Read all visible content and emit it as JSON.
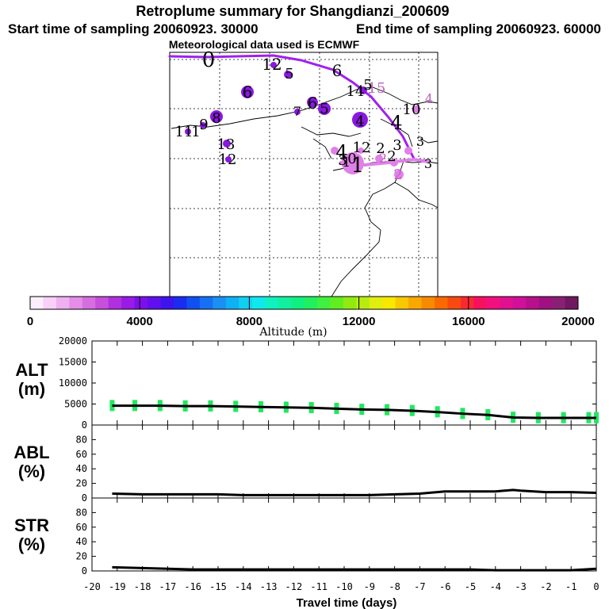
{
  "header": {
    "title": "Retroplume summary for Shangdianzi_200609",
    "start_label": "Start time of sampling 20060923. 30000",
    "end_label": "End time of sampling 20060923. 60000",
    "met_label": "Meteorological data used is ECMWF"
  },
  "colorbar": {
    "label": "Altitude (m)",
    "ticks": [
      "0",
      "4000",
      "8000",
      "12000",
      "16000",
      "20000"
    ],
    "colors": [
      "#fdeefd",
      "#f8d0f8",
      "#efb0f0",
      "#e48ee6",
      "#d66ee0",
      "#c64fdc",
      "#b030e0",
      "#9a1ae6",
      "#7d10e8",
      "#6010ec",
      "#3d14ee",
      "#1a2cf0",
      "#1050f0",
      "#1670f2",
      "#1a90f4",
      "#10b0f4",
      "#10d0f2",
      "#10e8ee",
      "#10f0c0",
      "#10f0a0",
      "#10f080",
      "#20f060",
      "#40f040",
      "#60ee20",
      "#90ec10",
      "#b8ec10",
      "#e0ee10",
      "#f8e800",
      "#f8c800",
      "#f8a800",
      "#f88a00",
      "#f86a00",
      "#f84a10",
      "#f82a30",
      "#f81060",
      "#f01080",
      "#e01090",
      "#d0109a",
      "#b8108c",
      "#a01080",
      "#882074",
      "#701860"
    ]
  },
  "map": {
    "labels": [
      "0",
      "12",
      "5",
      "6",
      "6",
      "14",
      "15",
      "5",
      "4",
      "6",
      "7",
      "5",
      "4",
      "10",
      "4",
      "1",
      "11",
      "9",
      "8",
      "13",
      "12",
      "4",
      "3",
      "12",
      "2",
      "3",
      "2",
      "0",
      "1",
      "1",
      "2",
      "2",
      "3",
      "3"
    ],
    "label_colors": {
      "dark": "#000000",
      "light": "#c060c0",
      "track": "#a020f0",
      "dot_purple": "#8a18e0",
      "dot_light": "#e080e8"
    }
  },
  "chart_data": [
    {
      "type": "line",
      "panel": "ALT",
      "ylabel": "ALT\n(m)",
      "ylabel_lines": [
        "ALT",
        "(m)"
      ],
      "ylim": [
        0,
        20000
      ],
      "yticks": [
        "0",
        "5000",
        "10000",
        "15000",
        "20000"
      ],
      "xlim": [
        -20,
        0
      ],
      "x": [
        -19.2,
        -18.3,
        -17.3,
        -16.3,
        -15.3,
        -14.3,
        -13.3,
        -12.3,
        -11.3,
        -10.3,
        -9.3,
        -8.3,
        -7.3,
        -6.3,
        -5.3,
        -4.3,
        -3.3,
        -2.3,
        -1.3,
        -0.3,
        0
      ],
      "values": [
        4600,
        4600,
        4600,
        4500,
        4500,
        4400,
        4300,
        4200,
        4100,
        3900,
        3700,
        3600,
        3400,
        3100,
        2700,
        2400,
        1800,
        1700,
        1700,
        1700,
        1700
      ],
      "scatter_color": "#20e860",
      "line_color": "#000000"
    },
    {
      "type": "line",
      "panel": "ABL",
      "ylabel_lines": [
        "ABL",
        "(%)"
      ],
      "ylim": [
        0,
        100
      ],
      "yticks": [
        "0",
        "20",
        "40",
        "60",
        "80"
      ],
      "xlim": [
        -20,
        0
      ],
      "x": [
        -19.2,
        -18,
        -17,
        -16,
        -15,
        -14,
        -13,
        -12,
        -11,
        -10,
        -9,
        -8,
        -7,
        -6,
        -5,
        -4,
        -3.3,
        -3,
        -2,
        -1,
        0
      ],
      "values": [
        6,
        5,
        5,
        5,
        5,
        4,
        4,
        4,
        4,
        4,
        4,
        5,
        6,
        9,
        9,
        9,
        11,
        10,
        8,
        8,
        7
      ],
      "line_color": "#000000"
    },
    {
      "type": "line",
      "panel": "STR",
      "ylabel_lines": [
        "STR",
        "(%)"
      ],
      "ylim": [
        0,
        100
      ],
      "yticks": [
        "0",
        "20",
        "40",
        "60",
        "80"
      ],
      "xlim": [
        -20,
        0
      ],
      "x": [
        -19.2,
        -18,
        -17,
        -16,
        -15,
        -14,
        -13,
        -12,
        -11,
        -10,
        -9,
        -8,
        -7,
        -6,
        -5,
        -4,
        -3,
        -2,
        -1,
        0
      ],
      "values": [
        5,
        4,
        3,
        2,
        2,
        2,
        2,
        2,
        2,
        2,
        2,
        2,
        2,
        2,
        2,
        1,
        1,
        1,
        1,
        3
      ],
      "line_color": "#000000"
    }
  ],
  "xaxis": {
    "label": "Travel time (days)",
    "ticks": [
      "-20",
      "-19",
      "-18",
      "-17",
      "-16",
      "-15",
      "-14",
      "-13",
      "-12",
      "-11",
      "-10",
      "-9",
      "-8",
      "-7",
      "-6",
      "-5",
      "-4",
      "-3",
      "-2",
      "-1",
      "0"
    ]
  }
}
